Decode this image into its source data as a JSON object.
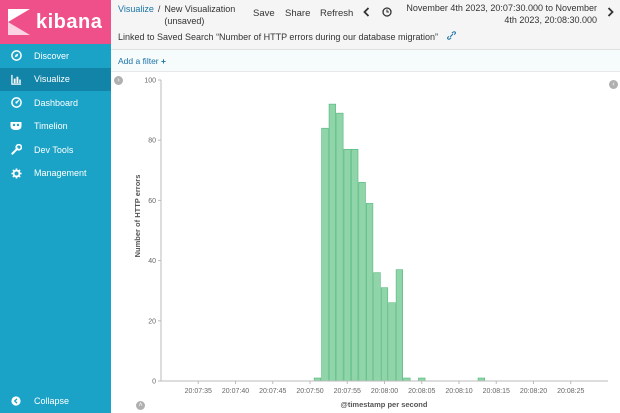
{
  "app": {
    "logo_text": "kibana"
  },
  "sidebar": {
    "items": [
      {
        "label": "Discover",
        "icon": "compass-icon",
        "active": false
      },
      {
        "label": "Visualize",
        "icon": "bar-chart-icon",
        "active": true
      },
      {
        "label": "Dashboard",
        "icon": "dashboard-gauge-icon",
        "active": false
      },
      {
        "label": "Timelion",
        "icon": "timelion-mask-icon",
        "active": false
      },
      {
        "label": "Dev Tools",
        "icon": "wrench-icon",
        "active": false
      },
      {
        "label": "Management",
        "icon": "gear-icon",
        "active": false
      }
    ],
    "collapse_label": "Collapse"
  },
  "header": {
    "breadcrumb_root": "Visualize",
    "breadcrumb_separator": "/",
    "title_line1": "New Visualization",
    "title_line2": "(unsaved)",
    "save_label": "Save",
    "share_label": "Share",
    "refresh_label": "Refresh",
    "time_range_line1": "November 4th 2023, 20:07:30.000 to November",
    "time_range_line2": "4th 2023, 20:08:30.000",
    "linked_search_text": "Linked to Saved Search “Number of HTTP errors during our database migration”"
  },
  "filterbar": {
    "add_filter_label": "Add a filter",
    "add_icon": "+"
  },
  "colors": {
    "bar": "#8fd5a9",
    "bar_stroke": "#3fae6c",
    "sidebar": "#1ba3c7",
    "sidebar_active": "#1284a7",
    "logo_bg": "#f0508a",
    "link": "#1a74a8"
  },
  "chart_data": {
    "type": "bar",
    "xlabel": "@timestamp per second",
    "ylabel": "Number of HTTP errors",
    "ylim": [
      0,
      100
    ],
    "yticks": [
      0,
      20,
      40,
      60,
      80,
      100
    ],
    "xticks": [
      "20:07:35",
      "20:07:40",
      "20:07:45",
      "20:07:50",
      "20:07:55",
      "20:08:00",
      "20:08:05",
      "20:08:10",
      "20:08:15",
      "20:08:20",
      "20:08:25"
    ],
    "x_start": "20:07:30",
    "x_end": "20:08:30",
    "bars": [
      {
        "t": "20:07:51",
        "value": 1
      },
      {
        "t": "20:07:52",
        "value": 84
      },
      {
        "t": "20:07:53",
        "value": 92
      },
      {
        "t": "20:07:54",
        "value": 89
      },
      {
        "t": "20:07:55",
        "value": 77
      },
      {
        "t": "20:07:56",
        "value": 77
      },
      {
        "t": "20:07:57",
        "value": 66
      },
      {
        "t": "20:07:58",
        "value": 59
      },
      {
        "t": "20:07:59",
        "value": 36
      },
      {
        "t": "20:08:00",
        "value": 31
      },
      {
        "t": "20:08:01",
        "value": 26
      },
      {
        "t": "20:08:02",
        "value": 37
      },
      {
        "t": "20:08:03",
        "value": 1
      },
      {
        "t": "20:08:05",
        "value": 1
      },
      {
        "t": "20:08:13",
        "value": 1
      }
    ]
  }
}
